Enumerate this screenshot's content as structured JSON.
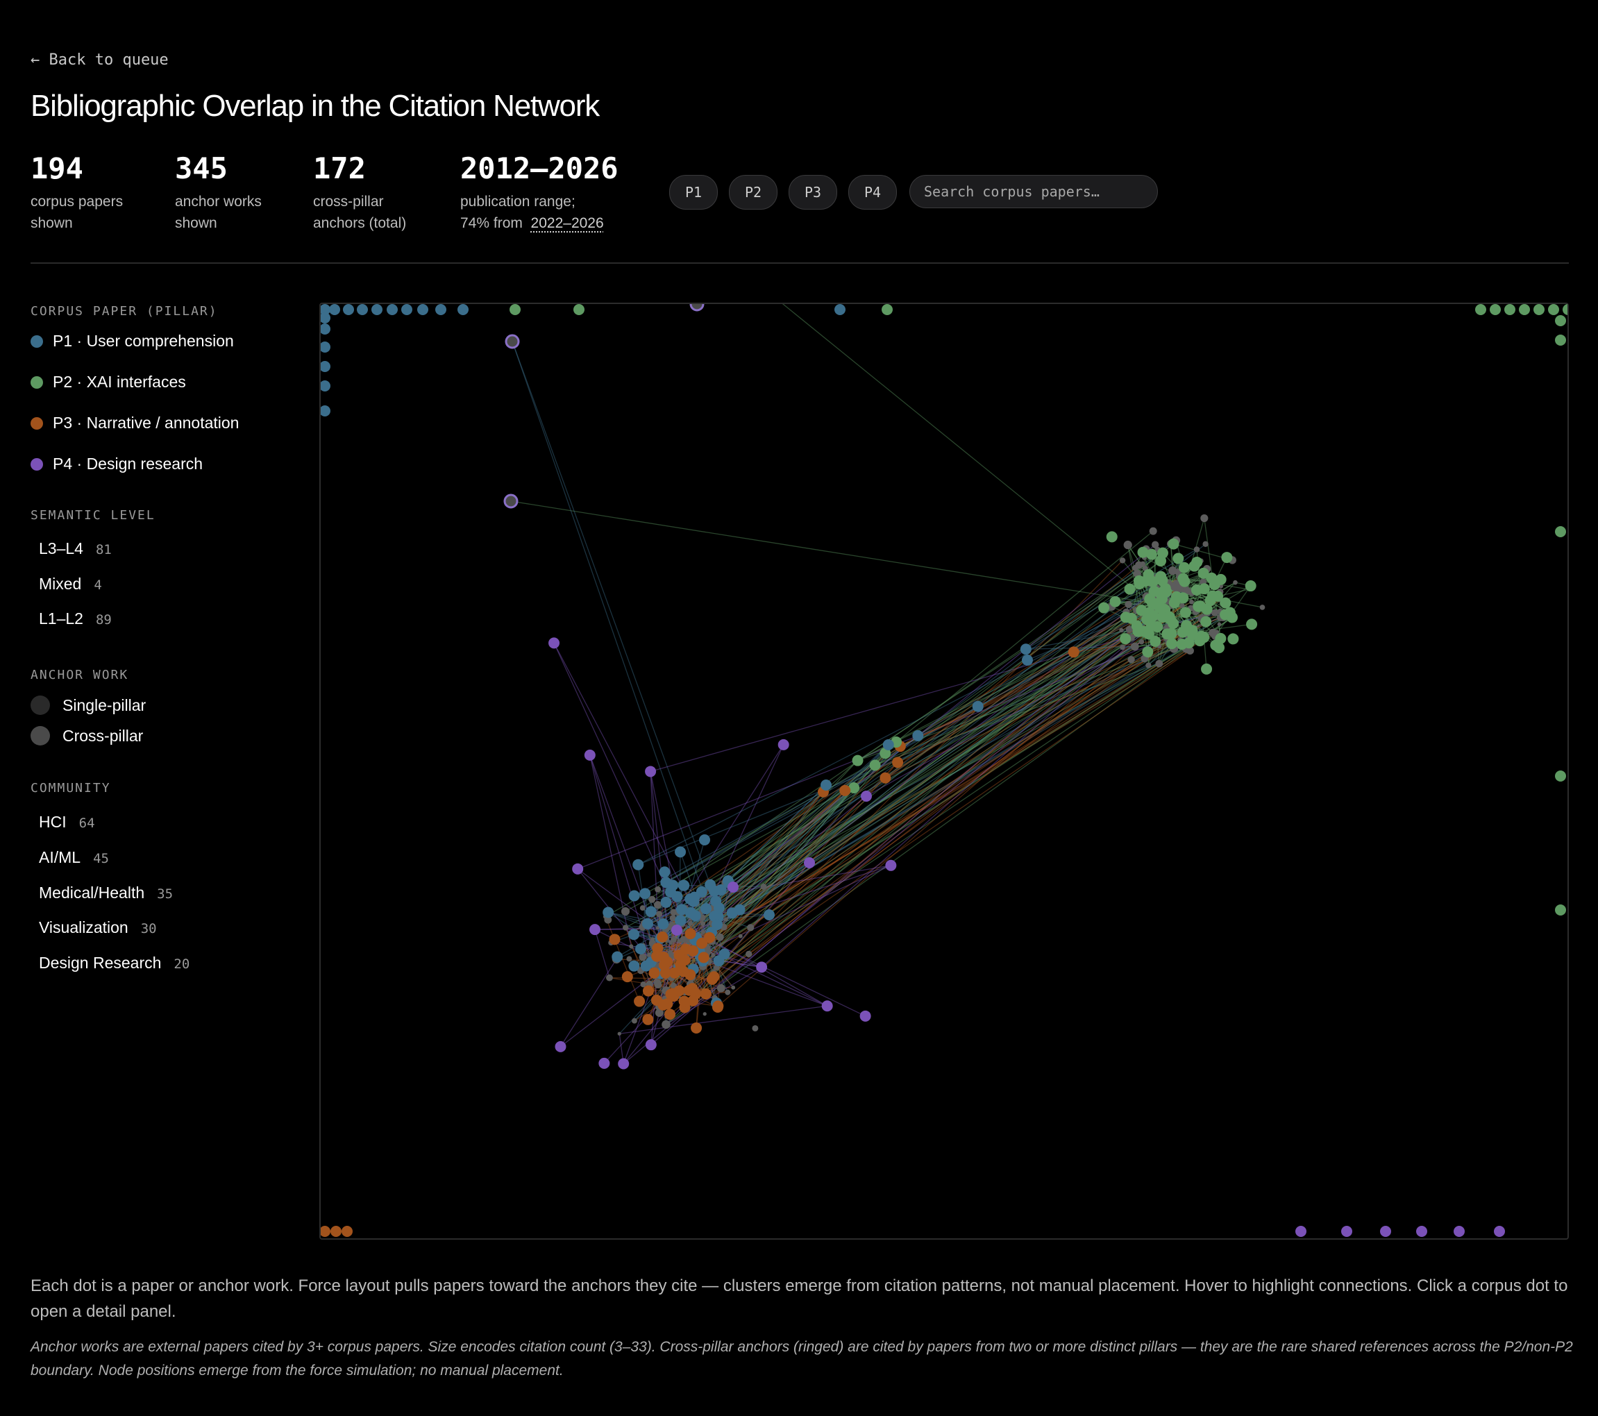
{
  "nav": {
    "back": "← Back to queue"
  },
  "page": {
    "title": "Bibliographic Overlap in the Citation Network"
  },
  "stats": [
    {
      "value": "194",
      "label_1": "corpus papers",
      "label_2": "shown"
    },
    {
      "value": "345",
      "label_1": "anchor works",
      "label_2": "shown"
    },
    {
      "value": "172",
      "label_1": "cross-pillar",
      "label_2": "anchors (total)"
    },
    {
      "value": "2012–2026",
      "label_1": "publication range;",
      "label_2": "74% from",
      "range": "2022–2026"
    }
  ],
  "filters": [
    "P1",
    "P2",
    "P3",
    "P4"
  ],
  "search": {
    "placeholder": "Search corpus papers…"
  },
  "legend": {
    "pillar_heading": "CORPUS PAPER (PILLAR)",
    "pillars": [
      {
        "label": "P1 · User comprehension",
        "color": "#3b6e8c"
      },
      {
        "label": "P2 · XAI interfaces",
        "color": "#5e9a62"
      },
      {
        "label": "P3 · Narrative / annotation",
        "color": "#a2531c"
      },
      {
        "label": "P4 · Design research",
        "color": "#7b52b8"
      }
    ],
    "semantic_heading": "SEMANTIC LEVEL",
    "semantic": [
      {
        "label": "L3–L4",
        "count": "81"
      },
      {
        "label": "Mixed",
        "count": "4"
      },
      {
        "label": "L1–L2",
        "count": "89"
      }
    ],
    "anchor_heading": "ANCHOR WORK",
    "anchors": [
      {
        "label": "Single-pillar",
        "color": "#2a2a2a"
      },
      {
        "label": "Cross-pillar",
        "color": "#4a4a4a"
      }
    ],
    "community_heading": "COMMUNITY",
    "communities": [
      {
        "label": "HCI",
        "count": "64"
      },
      {
        "label": "AI/ML",
        "count": "45"
      },
      {
        "label": "Medical/Health",
        "count": "35"
      },
      {
        "label": "Visualization",
        "count": "30"
      },
      {
        "label": "Design Research",
        "count": "20"
      }
    ]
  },
  "footer": {
    "description": "Each dot is a paper or anchor work. Force layout pulls papers toward the anchors they cite — clusters emerge from citation patterns, not manual placement. Hover to highlight connections. Click a corpus dot to open a detail panel.",
    "note": "Anchor works are external papers cited by 3+ corpus papers. Size encodes citation count (3–33). Cross-pillar anchors (ringed) are cited by papers from two or more distinct pillars — they are the rare shared references across the P2/non-P2 boundary. Node positions emerge from the force simulation; no manual placement."
  }
}
